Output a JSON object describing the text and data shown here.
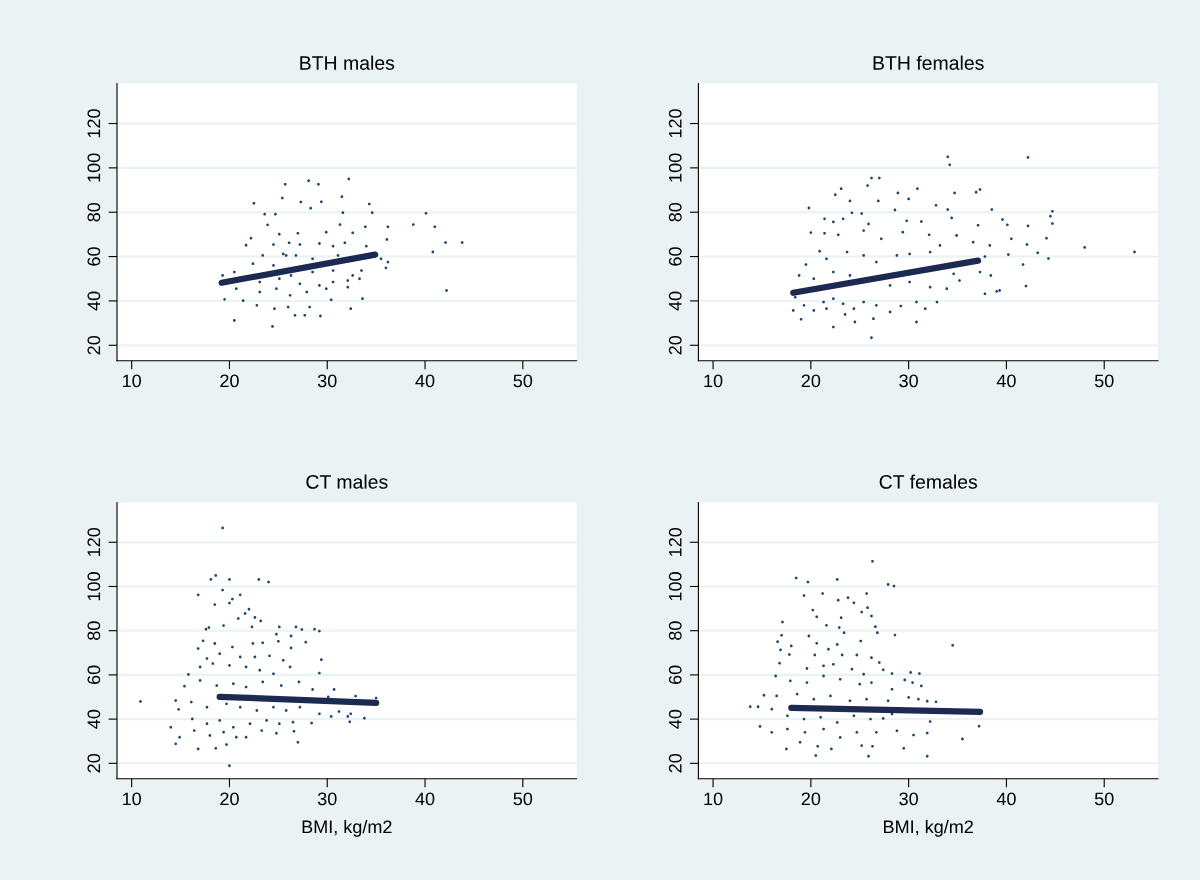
{
  "chart_data": [
    {
      "type": "scatter",
      "title": "BTH males",
      "xlim": [
        8.5,
        55.5
      ],
      "ylim": [
        13,
        138
      ],
      "xticks": [
        10,
        20,
        30,
        40,
        50
      ],
      "yticks": [
        20,
        40,
        60,
        80,
        100,
        120
      ],
      "grid": "y",
      "series": [
        {
          "type": "scatter",
          "marker": "circle",
          "color": "#1a476f",
          "x": [
            25.7,
            28.1,
            29.1,
            32.2,
            25.4,
            31.5,
            22.5,
            27.3,
            29.4,
            34.3,
            23.6,
            24.7,
            28.3,
            31.6,
            34.6,
            40.1,
            38.8,
            41.0,
            36.2,
            42.1,
            43.8,
            40.8,
            42.2,
            22.2,
            21.7,
            23.9,
            25.1,
            27.0,
            29.9,
            31.3,
            32.6,
            33.9,
            36.1,
            24.5,
            26.1,
            27.2,
            29.2,
            30.6,
            31.8,
            34.0,
            23.4,
            25.5,
            26.8,
            28.5,
            31.1,
            35.5,
            36.2,
            22.4,
            24.5,
            28.5,
            30.6,
            32.6,
            33.5,
            36.0,
            19.3,
            20.5,
            23.1,
            25.1,
            27.2,
            29.2,
            30.6,
            32.1,
            33.3,
            20.7,
            23.1,
            24.8,
            26.2,
            27.9,
            29.9,
            32.1,
            19.5,
            21.4,
            22.8,
            24.6,
            26.0,
            28.2,
            30.4,
            32.4,
            33.6,
            20.5,
            24.4,
            26.7,
            27.7,
            29.3,
            25.8,
            26.3
          ],
          "values": [
            92.6,
            94.2,
            92.6,
            95.0,
            86.4,
            87.0,
            84.0,
            84.6,
            84.7,
            83.7,
            79.1,
            79.1,
            81.8,
            79.8,
            79.8,
            79.5,
            74.4,
            73.4,
            73.4,
            66.3,
            66.3,
            62.1,
            44.7,
            68.3,
            65.1,
            74.3,
            70.1,
            70.5,
            71.0,
            74.4,
            70.7,
            73.4,
            67.7,
            65.4,
            66.2,
            65.4,
            65.9,
            64.7,
            66.2,
            64.7,
            60.5,
            61.2,
            60.5,
            59.0,
            60.5,
            59.0,
            57.5,
            56.8,
            56.0,
            53.0,
            53.7,
            51.5,
            53.7,
            54.9,
            51.5,
            53.0,
            48.5,
            50.0,
            47.7,
            47.0,
            48.5,
            49.2,
            50.0,
            45.5,
            44.0,
            45.5,
            42.5,
            44.0,
            45.5,
            46.2,
            40.7,
            40.1,
            38.0,
            36.5,
            37.2,
            37.2,
            40.5,
            36.5,
            41.0,
            31.2,
            28.5,
            33.5,
            33.5,
            33.2,
            60.5,
            51.5
          ]
        },
        {
          "type": "line",
          "color": "#1c2951",
          "x": [
            19.2,
            34.9
          ],
          "values": [
            48.2,
            60.9
          ]
        }
      ]
    },
    {
      "type": "scatter",
      "title": "BTH females",
      "xlim": [
        8.5,
        55.5
      ],
      "ylim": [
        13,
        138
      ],
      "xticks": [
        10,
        20,
        30,
        40,
        50
      ],
      "yticks": [
        20,
        40,
        60,
        80,
        100,
        120
      ],
      "grid": "y",
      "series": [
        {
          "type": "scatter",
          "marker": "circle",
          "color": "#1a476f",
          "x": [
            34.0,
            34.2,
            42.2,
            26.2,
            27.0,
            23.1,
            22.5,
            25.8,
            30.9,
            36.9,
            37.3,
            24.0,
            26.9,
            28.9,
            30.0,
            32.8,
            34.7,
            19.8,
            24.2,
            25.2,
            28.6,
            34.0,
            38.5,
            44.7,
            44.5,
            44.7,
            39.6,
            40.1,
            42.2,
            37.1,
            34.4,
            21.4,
            22.3,
            23.3,
            25.9,
            29.8,
            31.3,
            20.0,
            21.4,
            22.8,
            25.4,
            27.2,
            29.4,
            32.1,
            34.9,
            36.6,
            40.5,
            42.1,
            44.1,
            48.0,
            53.1,
            40.2,
            43.2,
            44.3,
            41.7,
            42.0,
            38.3,
            37.8,
            20.9,
            19.5,
            18.8,
            21.6,
            23.7,
            25.4,
            26.7,
            28.8,
            30.1,
            32.2,
            33.2,
            34.6,
            35.2,
            37.3,
            38.4,
            37.8,
            39.0,
            39.3,
            20.3,
            22.3,
            24.0,
            28.1,
            30.1,
            32.2,
            33.9,
            18.4,
            19.3,
            20.3,
            21.3,
            22.3,
            23.3,
            24.4,
            25.4,
            26.7,
            28.1,
            29.2,
            30.8,
            31.7,
            32.9,
            18.2,
            19.0,
            22.3,
            24.5,
            26.4,
            30.8,
            26.2,
            23.5,
            21.6
          ],
          "values": [
            105.0,
            101.4,
            104.7,
            95.4,
            95.4,
            90.6,
            87.9,
            92.0,
            90.6,
            89.0,
            90.2,
            85.1,
            85.1,
            88.7,
            86.0,
            83.1,
            88.7,
            81.9,
            79.7,
            79.4,
            81.0,
            81.2,
            81.2,
            80.4,
            78.2,
            74.9,
            76.7,
            74.3,
            73.8,
            74.1,
            77.4,
            77.0,
            75.6,
            77.0,
            74.7,
            76.1,
            75.8,
            70.8,
            70.5,
            69.8,
            71.7,
            68.0,
            71.0,
            69.8,
            69.5,
            66.5,
            68.0,
            65.4,
            68.3,
            64.1,
            62.1,
            60.9,
            61.7,
            59.1,
            56.4,
            46.7,
            65.0,
            60.0,
            62.4,
            56.4,
            51.5,
            59.0,
            62.0,
            60.5,
            57.5,
            60.5,
            61.2,
            62.0,
            65.0,
            52.2,
            49.2,
            53.0,
            51.5,
            43.2,
            44.3,
            44.7,
            50.0,
            53.0,
            51.5,
            47.0,
            48.5,
            46.2,
            45.5,
            41.7,
            38.0,
            35.7,
            39.5,
            41.0,
            38.7,
            36.5,
            39.5,
            38.0,
            35.0,
            37.7,
            39.5,
            36.5,
            39.5,
            35.7,
            31.7,
            28.2,
            30.5,
            32.0,
            30.5,
            23.4,
            33.9,
            36.5
          ]
        },
        {
          "type": "line",
          "color": "#1c2951",
          "x": [
            18.2,
            37.1
          ],
          "values": [
            43.7,
            58.2
          ]
        }
      ]
    },
    {
      "type": "scatter",
      "title": "CT males",
      "xlabel": "BMI, kg/m2",
      "xlim": [
        8.5,
        55.5
      ],
      "ylim": [
        13,
        138
      ],
      "xticks": [
        10,
        20,
        30,
        40,
        50
      ],
      "yticks": [
        20,
        40,
        60,
        80,
        100,
        120
      ],
      "grid": "y",
      "series": [
        {
          "type": "scatter",
          "marker": "circle",
          "color": "#1a476f",
          "x": [
            19.3,
            18.6,
            18.1,
            20.0,
            23.0,
            24.0,
            19.3,
            16.8,
            21.1,
            20.3,
            18.5,
            20.0,
            22.0,
            21.6,
            20.9,
            22.6,
            23.2,
            17.6,
            17.9,
            19.4,
            22.3,
            25.1,
            26.8,
            27.4,
            28.7,
            29.2,
            24.8,
            26.3,
            27.8,
            17.3,
            18.5,
            20.3,
            22.4,
            23.4,
            25.0,
            26.3,
            16.8,
            17.7,
            19.0,
            21.1,
            22.6,
            24.1,
            25.5,
            29.4,
            29.2,
            15.8,
            17.0,
            18.3,
            20.0,
            21.7,
            23.1,
            24.5,
            26.2,
            15.4,
            17.0,
            18.7,
            20.4,
            21.7,
            23.4,
            25.3,
            27.1,
            28.5,
            30.7,
            32.9,
            35.0,
            10.9,
            14.5,
            14.8,
            16.1,
            17.7,
            19.7,
            21.1,
            22.8,
            24.5,
            25.8,
            27.2,
            30.1,
            29.2,
            31.2,
            32.4,
            30.4,
            32.1,
            33.8,
            32.3,
            16.2,
            17.7,
            19.0,
            20.4,
            22.1,
            23.8,
            25.1,
            26.5,
            28.4,
            14.0,
            16.4,
            18.0,
            19.4,
            20.7,
            21.7,
            23.3,
            24.8,
            26.6,
            14.9,
            14.5,
            16.8,
            18.6,
            19.7,
            27.0,
            20.0
          ],
          "values": [
            126.5,
            105.0,
            103.2,
            103.2,
            103.2,
            102.0,
            98.4,
            96.2,
            96.2,
            94.3,
            91.8,
            92.5,
            89.7,
            87.8,
            85.5,
            86.0,
            84.4,
            80.7,
            81.4,
            82.3,
            81.7,
            81.7,
            81.7,
            80.5,
            80.7,
            79.8,
            78.4,
            77.6,
            74.8,
            75.4,
            74.2,
            72.6,
            74.2,
            74.5,
            75.2,
            72.2,
            71.9,
            67.4,
            69.6,
            68.1,
            68.1,
            68.6,
            66.6,
            66.9,
            60.8,
            60.2,
            63.6,
            65.1,
            64.3,
            63.6,
            62.1,
            60.5,
            63.6,
            54.9,
            57.5,
            55.2,
            56.0,
            54.5,
            56.8,
            55.2,
            56.8,
            53.4,
            53.4,
            50.4,
            49.5,
            48.0,
            48.4,
            44.4,
            47.7,
            45.4,
            46.9,
            45.4,
            43.9,
            45.4,
            43.9,
            45.4,
            50.0,
            42.4,
            43.4,
            42.4,
            41.2,
            41.2,
            40.4,
            38.8,
            40.1,
            37.9,
            39.4,
            36.3,
            37.9,
            39.4,
            37.9,
            38.6,
            38.2,
            36.3,
            34.8,
            32.6,
            34.1,
            31.8,
            31.8,
            34.8,
            33.6,
            34.5,
            31.8,
            28.8,
            26.5,
            26.8,
            28.5,
            29.5,
            18.9
          ]
        },
        {
          "type": "line",
          "color": "#1c2951",
          "x": [
            19.0,
            35.0
          ],
          "values": [
            50.1,
            47.4
          ]
        }
      ]
    },
    {
      "type": "scatter",
      "title": "CT females",
      "xlabel": "BMI, kg/m2",
      "xlim": [
        8.5,
        55.5
      ],
      "ylim": [
        13,
        138
      ],
      "xticks": [
        10,
        20,
        30,
        40,
        50
      ],
      "yticks": [
        20,
        40,
        60,
        80,
        100,
        120
      ],
      "grid": "y",
      "series": [
        {
          "type": "scatter",
          "marker": "circle",
          "color": "#1a476f",
          "x": [
            26.3,
            18.5,
            19.7,
            22.7,
            27.9,
            28.5,
            19.3,
            21.2,
            22.8,
            23.8,
            24.4,
            25.7,
            20.2,
            20.6,
            23.1,
            25.2,
            25.8,
            26.2,
            17.1,
            21.6,
            22.9,
            23.4,
            26.6,
            26.8,
            28.6,
            34.5,
            17.0,
            16.6,
            18.0,
            19.8,
            20.6,
            22.7,
            25.1,
            16.9,
            17.8,
            20.4,
            21.8,
            23.2,
            24.7,
            26.2,
            27.0,
            16.8,
            19.6,
            21.3,
            22.3,
            24.2,
            25.4,
            27.4,
            28.3,
            30.2,
            31.1,
            16.4,
            17.9,
            19.6,
            21.3,
            23.0,
            25.0,
            26.2,
            28.3,
            29.6,
            30.4,
            31.3,
            15.2,
            16.5,
            18.6,
            20.3,
            22.0,
            24.0,
            25.7,
            27.9,
            30.0,
            31.0,
            31.9,
            32.8,
            13.8,
            14.6,
            16.0,
            17.6,
            19.3,
            21.0,
            22.7,
            24.4,
            26.1,
            27.4,
            28.3,
            32.2,
            14.8,
            16.0,
            17.6,
            19.4,
            21.3,
            23.0,
            24.7,
            26.7,
            28.8,
            30.5,
            31.9,
            37.2,
            17.5,
            18.9,
            20.7,
            22.1,
            25.2,
            26.3,
            29.5,
            31.9,
            35.5,
            20.5,
            25.9
          ],
          "values": [
            111.4,
            103.8,
            102.0,
            103.2,
            100.9,
            100.2,
            95.9,
            96.8,
            93.8,
            94.9,
            92.6,
            96.8,
            89.3,
            86.3,
            85.9,
            88.4,
            90.4,
            86.6,
            83.9,
            82.4,
            81.4,
            79.1,
            81.8,
            79.1,
            78.0,
            73.4,
            77.9,
            75.0,
            73.1,
            77.6,
            74.3,
            73.8,
            75.3,
            71.3,
            69.2,
            69.0,
            71.6,
            69.0,
            69.0,
            67.8,
            65.6,
            65.3,
            62.9,
            64.1,
            64.8,
            62.6,
            60.3,
            62.3,
            60.6,
            61.1,
            60.6,
            59.5,
            57.3,
            56.5,
            59.5,
            58.0,
            55.8,
            56.5,
            53.5,
            57.7,
            56.5,
            55.0,
            50.8,
            50.5,
            51.3,
            49.0,
            50.5,
            48.3,
            49.0,
            48.3,
            49.8,
            49.0,
            48.1,
            47.8,
            45.6,
            45.6,
            44.5,
            41.5,
            40.0,
            40.8,
            38.5,
            41.5,
            40.0,
            40.3,
            42.3,
            38.9,
            36.7,
            34.0,
            35.5,
            34.0,
            35.5,
            31.7,
            34.0,
            34.0,
            34.7,
            32.8,
            33.7,
            36.8,
            26.5,
            29.5,
            27.7,
            26.5,
            28.0,
            27.7,
            26.8,
            23.2,
            31.0,
            23.5,
            23.2
          ]
        },
        {
          "type": "line",
          "color": "#1c2951",
          "x": [
            18.0,
            37.3
          ],
          "values": [
            45.1,
            43.3
          ]
        }
      ]
    }
  ]
}
